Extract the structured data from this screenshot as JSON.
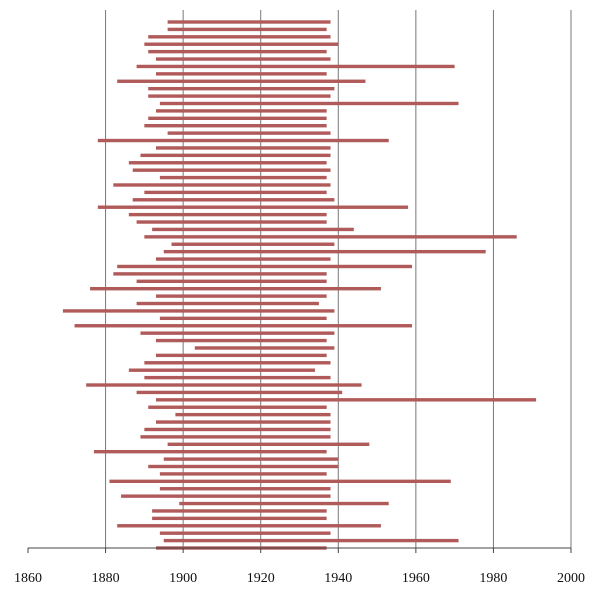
{
  "chart_data": {
    "type": "bar",
    "orientation": "horizontal-range",
    "title": "",
    "xlabel": "",
    "ylabel": "",
    "xlim": [
      1860,
      2000
    ],
    "x_ticks": [
      1860,
      1880,
      1900,
      1920,
      1940,
      1960,
      1980,
      2000
    ],
    "x_tick_labels": [
      "1860",
      "1880",
      "1900",
      "1920",
      "1940",
      "1960",
      "1980",
      "2000"
    ],
    "grid": "vertical major lines",
    "legend": "none",
    "bar_color": "#b05a5a",
    "ranges": [
      [
        1896,
        1938
      ],
      [
        1896,
        1937
      ],
      [
        1891,
        1938
      ],
      [
        1890,
        1940
      ],
      [
        1891,
        1937
      ],
      [
        1893,
        1938
      ],
      [
        1888,
        1970
      ],
      [
        1893,
        1937
      ],
      [
        1883,
        1947
      ],
      [
        1891,
        1939
      ],
      [
        1891,
        1938
      ],
      [
        1894,
        1971
      ],
      [
        1893,
        1937
      ],
      [
        1891,
        1937
      ],
      [
        1890,
        1937
      ],
      [
        1896,
        1938
      ],
      [
        1878,
        1953
      ],
      [
        1893,
        1938
      ],
      [
        1889,
        1938
      ],
      [
        1886,
        1937
      ],
      [
        1887,
        1938
      ],
      [
        1894,
        1937
      ],
      [
        1882,
        1938
      ],
      [
        1890,
        1937
      ],
      [
        1887,
        1939
      ],
      [
        1878,
        1958
      ],
      [
        1886,
        1937
      ],
      [
        1888,
        1937
      ],
      [
        1892,
        1944
      ],
      [
        1890,
        1986
      ],
      [
        1897,
        1939
      ],
      [
        1895,
        1978
      ],
      [
        1893,
        1938
      ],
      [
        1883,
        1959
      ],
      [
        1882,
        1937
      ],
      [
        1888,
        1937
      ],
      [
        1876,
        1951
      ],
      [
        1893,
        1937
      ],
      [
        1888,
        1935
      ],
      [
        1869,
        1939
      ],
      [
        1894,
        1937
      ],
      [
        1872,
        1959
      ],
      [
        1889,
        1939
      ],
      [
        1893,
        1937
      ],
      [
        1903,
        1939
      ],
      [
        1893,
        1937
      ],
      [
        1890,
        1938
      ],
      [
        1886,
        1934
      ],
      [
        1890,
        1938
      ],
      [
        1875,
        1946
      ],
      [
        1888,
        1941
      ],
      [
        1893,
        1991
      ],
      [
        1891,
        1937
      ],
      [
        1898,
        1938
      ],
      [
        1893,
        1938
      ],
      [
        1890,
        1938
      ],
      [
        1889,
        1938
      ],
      [
        1896,
        1948
      ],
      [
        1877,
        1937
      ],
      [
        1895,
        1940
      ],
      [
        1891,
        1940
      ],
      [
        1894,
        1937
      ],
      [
        1881,
        1969
      ],
      [
        1894,
        1938
      ],
      [
        1884,
        1938
      ],
      [
        1899,
        1953
      ],
      [
        1892,
        1937
      ],
      [
        1892,
        1937
      ],
      [
        1883,
        1951
      ],
      [
        1894,
        1938
      ],
      [
        1895,
        1971
      ],
      [
        1893,
        1937
      ]
    ]
  }
}
